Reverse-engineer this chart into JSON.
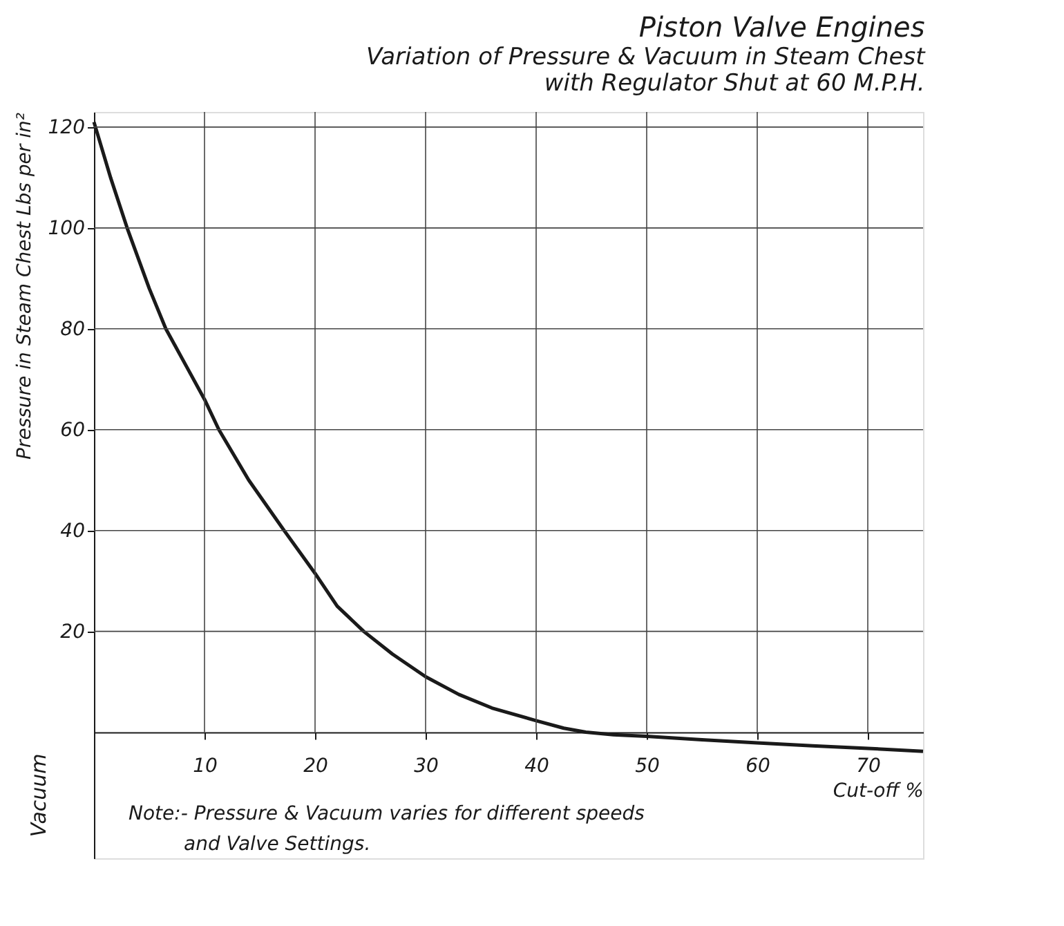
{
  "chart_data": {
    "type": "line",
    "title": "Piston Valve Engines",
    "subtitle": [
      "Variation of Pressure & Vacuum in Steam Chest",
      "with Regulator Shut at 60 M.P.H."
    ],
    "xlabel": "Cut-off %",
    "ylabel": "Pressure in Steam Chest   Lbs per in²",
    "annotations": [
      "Vacuum",
      "Note:- Pressure & Vacuum varies for different speeds",
      "and Valve Settings."
    ],
    "x": [
      0,
      1.5,
      3,
      5,
      6.5,
      8.5,
      10,
      11.3,
      14,
      17.2,
      20,
      22,
      24.4,
      27,
      30,
      33,
      36,
      40,
      42.5,
      44.5,
      47,
      50,
      55,
      60,
      65,
      70,
      75
    ],
    "series": [
      {
        "color": "#1a1a1a",
        "values": [
          121,
          110,
          100,
          88,
          80,
          72,
          66,
          60,
          50,
          40,
          31.5,
          25,
          20,
          15.5,
          11,
          7.5,
          4.8,
          2.3,
          0.8,
          0,
          -0.5,
          -0.8,
          -1.5,
          -2.1,
          -2.7,
          -3.2,
          -3.8
        ]
      }
    ],
    "xlim": [
      0,
      75
    ],
    "ylim": [
      -25,
      123
    ],
    "xticks": [
      10,
      20,
      30,
      40,
      50,
      60,
      70
    ],
    "yticks": [
      20,
      40,
      60,
      80,
      100,
      120
    ],
    "grid": true,
    "marker": "none",
    "line_style": "solid"
  }
}
